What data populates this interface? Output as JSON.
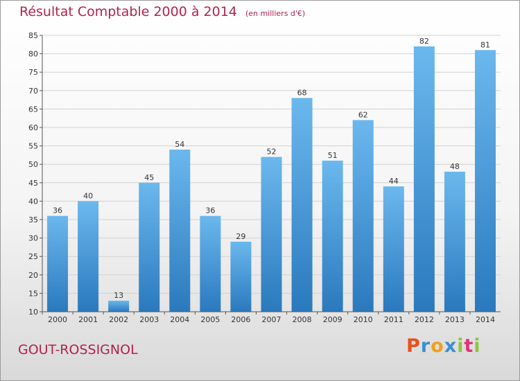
{
  "header": {
    "title": "Résultat Comptable 2000 à 2014",
    "subtitle": "(en milliers d'€)"
  },
  "footer": {
    "commune": "GOUT-ROSSIGNOL",
    "brand": [
      "P",
      "r",
      "o",
      "x",
      "i",
      "t",
      "i"
    ]
  },
  "colors": {
    "title": "#b0234c",
    "bar_light": "#6bb8ee",
    "bar_dark": "#2a79bd",
    "grid": "#d2d2d2",
    "brand": [
      "#e8501e",
      "#3a8fd0",
      "#f2a01e",
      "#3a8fd0",
      "#8cc63e",
      "#e0327a",
      "#8cc63e"
    ]
  },
  "chart_data": {
    "type": "bar",
    "categories": [
      "2000",
      "2001",
      "2002",
      "2003",
      "2004",
      "2005",
      "2006",
      "2007",
      "2008",
      "2009",
      "2010",
      "2011",
      "2012",
      "2013",
      "2014"
    ],
    "values": [
      36,
      40,
      13,
      45,
      54,
      36,
      29,
      52,
      68,
      51,
      62,
      44,
      82,
      48,
      81
    ],
    "ylim": [
      10,
      85
    ],
    "yticks": [
      10,
      15,
      20,
      25,
      30,
      35,
      40,
      45,
      50,
      55,
      60,
      65,
      70,
      75,
      80,
      85
    ],
    "grid": true,
    "data_labels": true
  }
}
